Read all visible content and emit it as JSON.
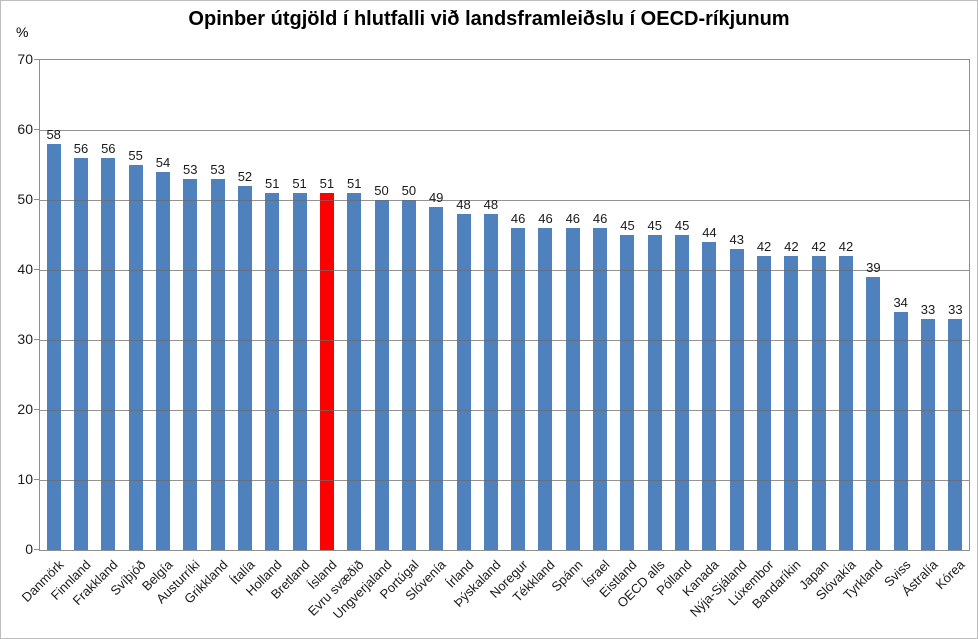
{
  "chart_data": {
    "type": "bar",
    "title": "Opinber útgjöld í hlutfalli við landsframleiðslu í OECD-ríkjunum",
    "ylabel": "%",
    "xlabel": "",
    "ylim": [
      0,
      70
    ],
    "yticks": [
      0,
      10,
      20,
      30,
      40,
      50,
      60,
      70
    ],
    "grid": true,
    "legend": false,
    "data_labels": true,
    "categories": [
      "Danmörk",
      "Finnland",
      "Frakkland",
      "Svíþjóð",
      "Belgía",
      "Austurríki",
      "Grikkland",
      "Ítalía",
      "Holland",
      "Bretland",
      "Ísland",
      "Evru svæðið",
      "Ungverjaland",
      "Portúgal",
      "Slóvenía",
      "Írland",
      "Þýskaland",
      "Noregur",
      "Tékkland",
      "Spánn",
      "Ísrael",
      "Eistland",
      "OECD alls",
      "Pólland",
      "Kanada",
      "Nýja-Sjáland",
      "Lúxembor",
      "Bandaríkin",
      "Japan",
      "Slóvakía",
      "Tyrkland",
      "Sviss",
      "Ástralía",
      "Kórea"
    ],
    "values": [
      58,
      56,
      56,
      55,
      54,
      53,
      53,
      52,
      51,
      51,
      51,
      51,
      50,
      50,
      49,
      48,
      48,
      46,
      46,
      46,
      46,
      45,
      45,
      45,
      44,
      43,
      42,
      42,
      42,
      42,
      39,
      34,
      33,
      33
    ],
    "bar_color": "#4F81BD",
    "highlight": {
      "index": 10,
      "category": "Ísland",
      "color": "#FF0000"
    },
    "gridline_color": "#696969",
    "axis_color": "#8e8e8e"
  }
}
